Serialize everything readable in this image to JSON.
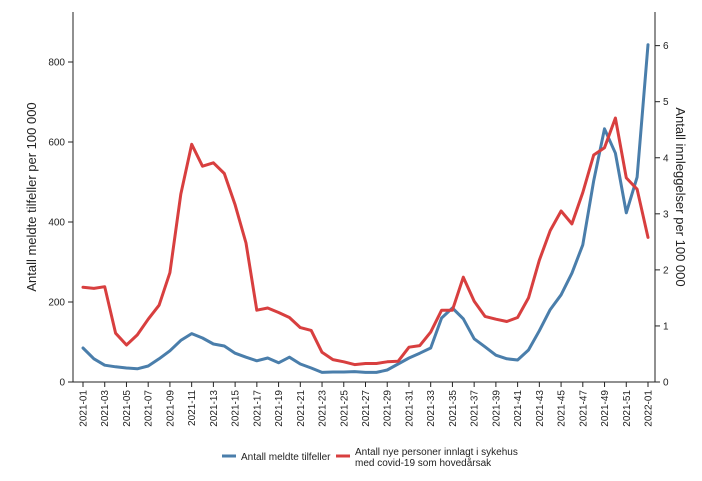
{
  "chart_data": {
    "type": "line",
    "x": [
      "2021-01",
      "2021-02",
      "2021-03",
      "2021-04",
      "2021-05",
      "2021-06",
      "2021-07",
      "2021-08",
      "2021-09",
      "2021-10",
      "2021-11",
      "2021-12",
      "2021-13",
      "2021-14",
      "2021-15",
      "2021-16",
      "2021-17",
      "2021-18",
      "2021-19",
      "2021-20",
      "2021-21",
      "2021-22",
      "2021-23",
      "2021-24",
      "2021-25",
      "2021-26",
      "2021-27",
      "2021-28",
      "2021-29",
      "2021-30",
      "2021-31",
      "2021-32",
      "2021-33",
      "2021-34",
      "2021-35",
      "2021-36",
      "2021-37",
      "2021-38",
      "2021-39",
      "2021-40",
      "2021-41",
      "2021-42",
      "2021-43",
      "2021-44",
      "2021-45",
      "2021-46",
      "2021-47",
      "2021-48",
      "2021-49",
      "2021-50",
      "2021-51",
      "2021-52",
      "2022-01"
    ],
    "x_tick_labels": [
      "2021-01",
      "2021-03",
      "2021-05",
      "2021-07",
      "2021-09",
      "2021-11",
      "2021-13",
      "2021-15",
      "2021-17",
      "2021-19",
      "2021-21",
      "2021-23",
      "2021-25",
      "2021-27",
      "2021-29",
      "2021-31",
      "2021-33",
      "2021-35",
      "2021-37",
      "2021-39",
      "2021-41",
      "2021-43",
      "2021-45",
      "2021-47",
      "2021-49",
      "2021-51",
      "2022-01"
    ],
    "ylabel": "Antall meldte tilfeller per 100 000",
    "ylim": [
      0,
      925
    ],
    "yticks": [
      "0",
      "200",
      "400",
      "600",
      "800"
    ],
    "y2label": "Antall innleggelser per 100 000",
    "y2lim": [
      0,
      6.6
    ],
    "y2ticks": [
      "0",
      "1",
      "2",
      "3",
      "4",
      "5",
      "6"
    ],
    "grid": false,
    "legend_position": "bottom",
    "series": [
      {
        "name": "Antall meldte tilfeller",
        "axis": "left",
        "color": "#4a7eab",
        "values": [
          85,
          58,
          42,
          38,
          35,
          33,
          40,
          58,
          78,
          104,
          121,
          110,
          95,
          90,
          72,
          62,
          53,
          60,
          48,
          62,
          45,
          35,
          24,
          25,
          25,
          26,
          24,
          24,
          30,
          45,
          60,
          72,
          85,
          160,
          185,
          158,
          108,
          88,
          67,
          58,
          55,
          80,
          128,
          181,
          218,
          272,
          343,
          503,
          633,
          572,
          423,
          512,
          843
        ]
      },
      {
        "name": "Antall nye personer innlagt i sykehus med covid-19 som hovedårsak",
        "axis": "right",
        "color": "#d83f3f",
        "values": [
          1.69,
          1.67,
          1.7,
          0.87,
          0.66,
          0.84,
          1.12,
          1.37,
          1.95,
          3.35,
          4.24,
          3.85,
          3.91,
          3.72,
          3.16,
          2.48,
          1.28,
          1.32,
          1.24,
          1.15,
          0.97,
          0.92,
          0.53,
          0.4,
          0.36,
          0.31,
          0.33,
          0.33,
          0.36,
          0.37,
          0.62,
          0.65,
          0.89,
          1.28,
          1.28,
          1.87,
          1.44,
          1.17,
          1.12,
          1.08,
          1.15,
          1.5,
          2.17,
          2.7,
          3.05,
          2.82,
          3.38,
          4.05,
          4.18,
          4.71,
          3.64,
          3.44,
          2.58
        ]
      }
    ]
  }
}
